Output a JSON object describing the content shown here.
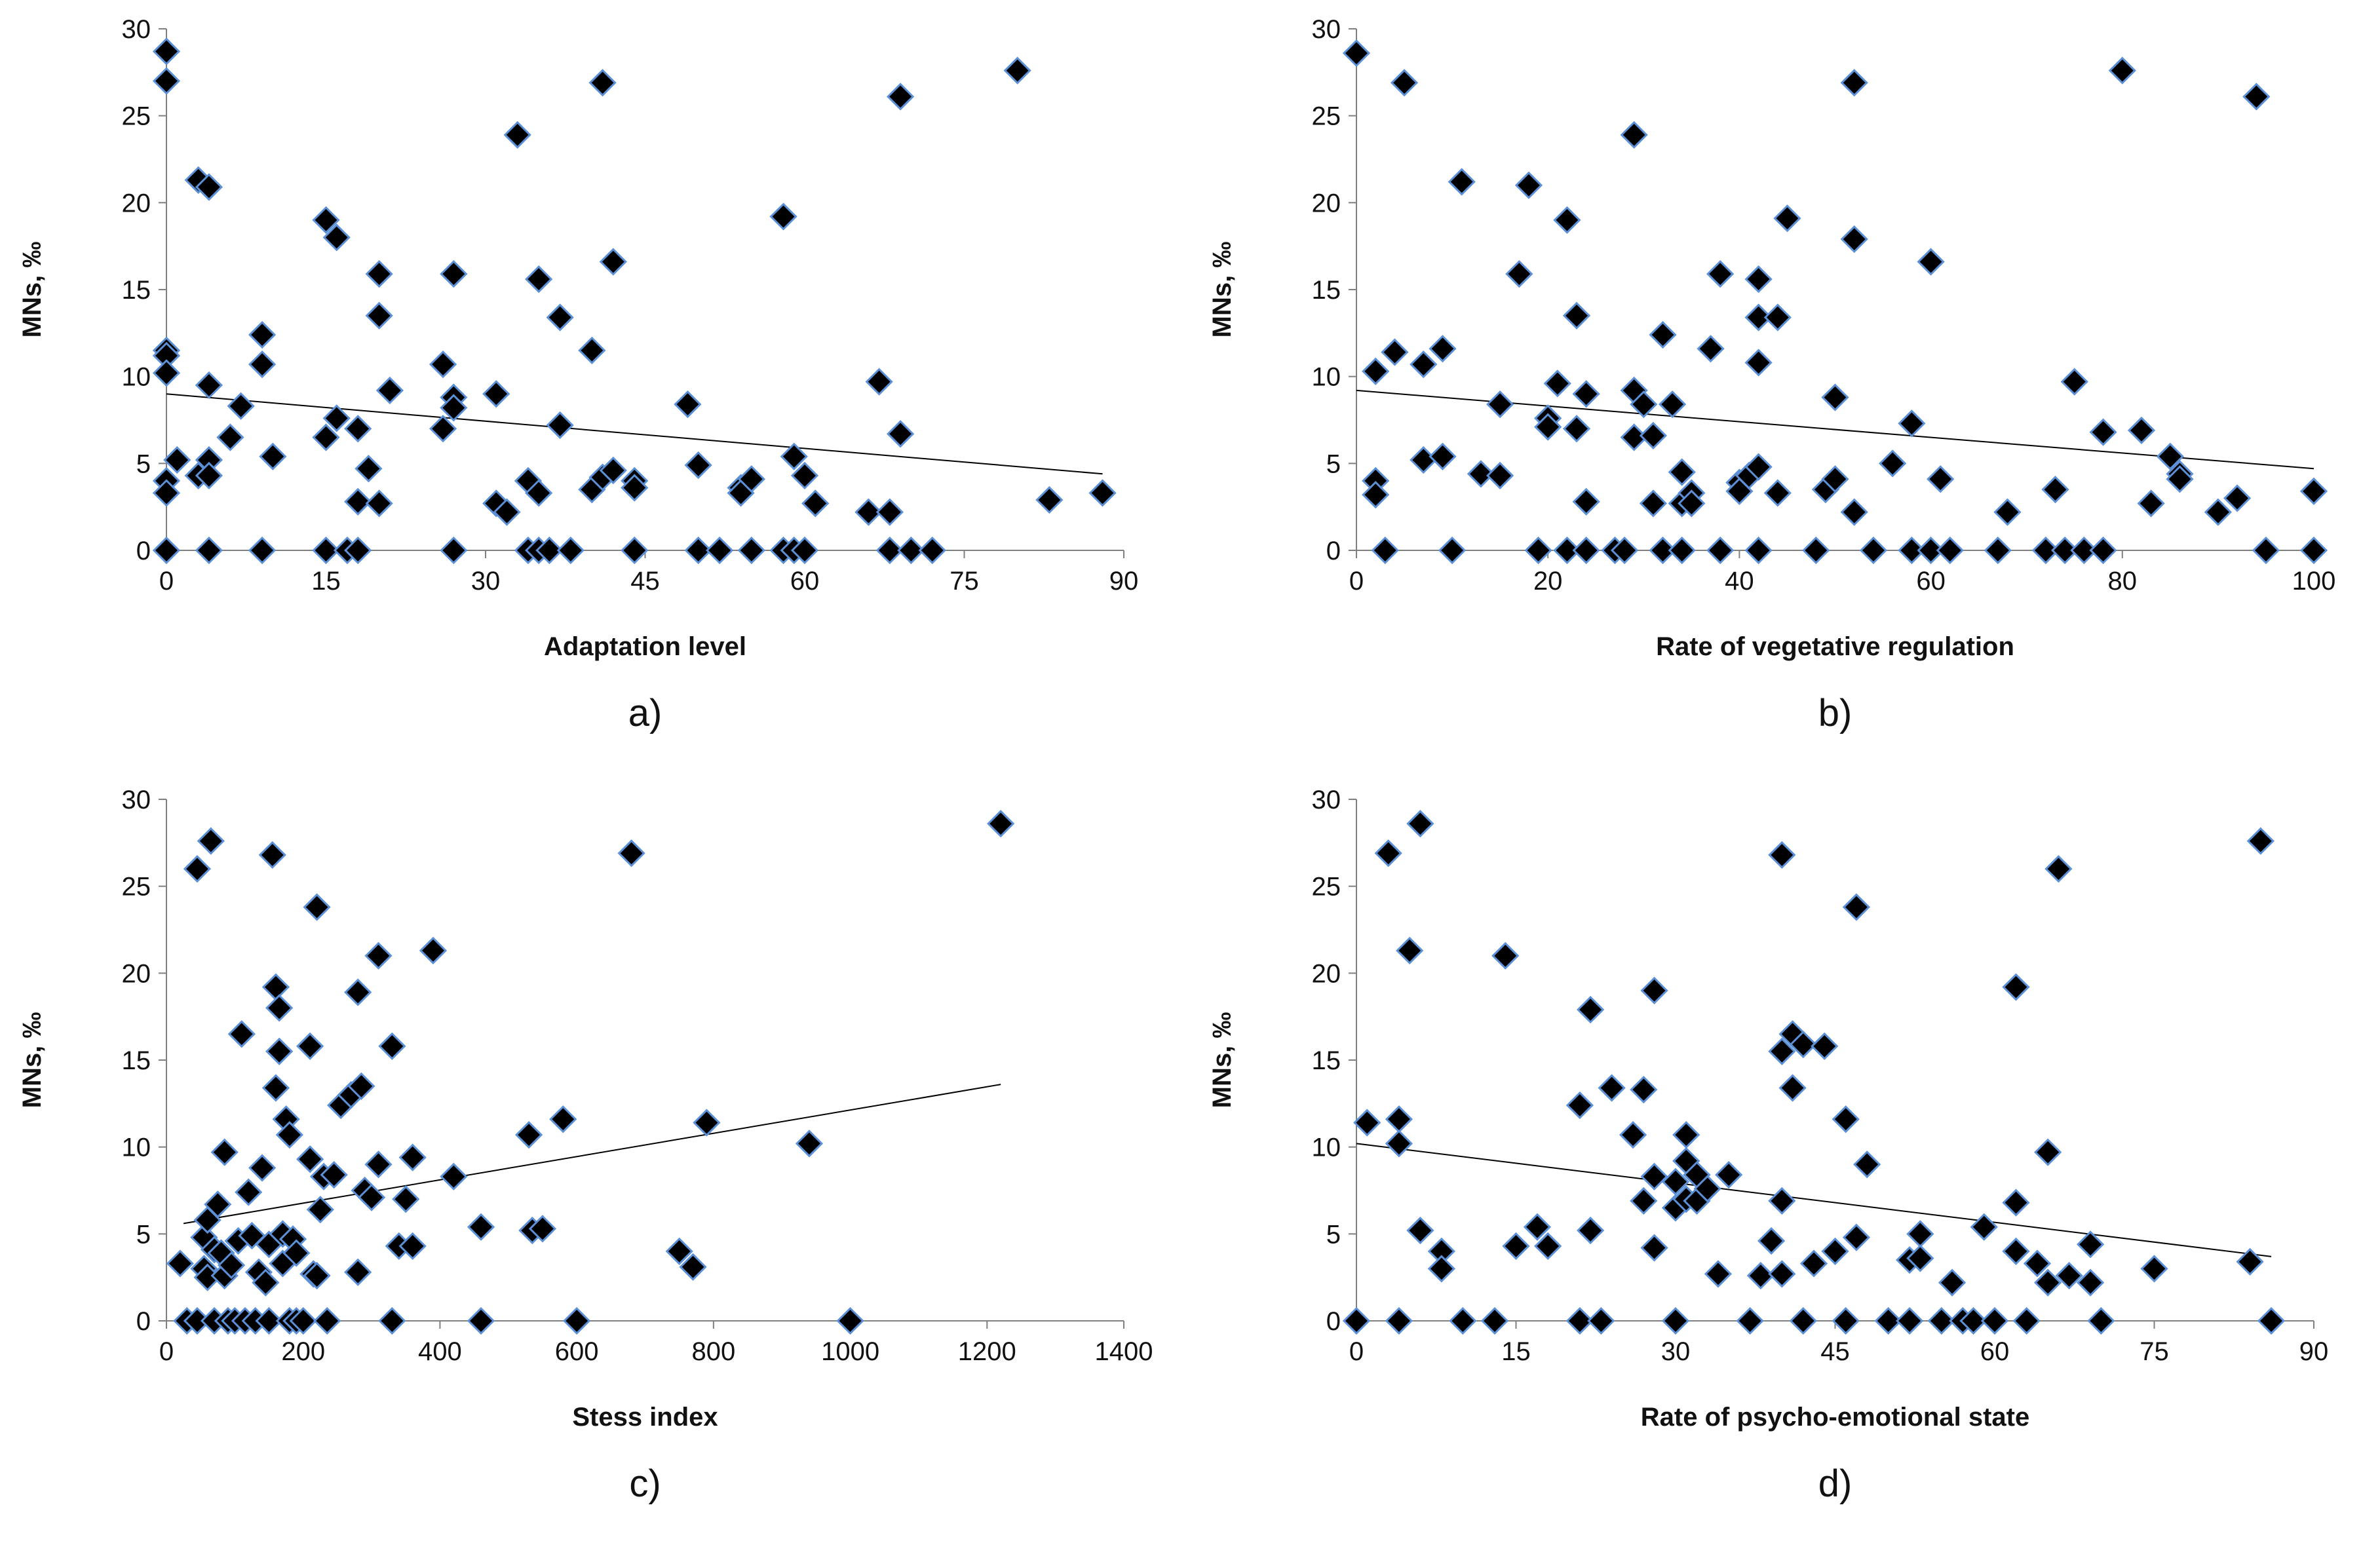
{
  "colors": {
    "marker_fill": "#000000",
    "marker_stroke": "#5b8fd6",
    "axis": "#808080",
    "trend": "#000000"
  },
  "chart_data": [
    {
      "id": "a",
      "type": "scatter",
      "caption": "a)",
      "xlabel": "Adaptation level",
      "ylabel": "MNs, ‰",
      "xlim": [
        0,
        90
      ],
      "ylim": [
        0,
        30
      ],
      "xticks": [
        0,
        15,
        30,
        45,
        60,
        75,
        90
      ],
      "yticks": [
        0,
        5,
        10,
        15,
        20,
        25,
        30
      ],
      "trendline": {
        "x": [
          0,
          88
        ],
        "y": [
          9.0,
          4.4
        ]
      },
      "points": [
        [
          0,
          28.7
        ],
        [
          0,
          27.0
        ],
        [
          0,
          11.5
        ],
        [
          0,
          11.2
        ],
        [
          0,
          10.2
        ],
        [
          0,
          4.0
        ],
        [
          0,
          3.3
        ],
        [
          0,
          0
        ],
        [
          1,
          5.2
        ],
        [
          3,
          21.3
        ],
        [
          3,
          4.3
        ],
        [
          4,
          20.9
        ],
        [
          4,
          9.5
        ],
        [
          4,
          5.2
        ],
        [
          4,
          4.3
        ],
        [
          4,
          0
        ],
        [
          6,
          6.5
        ],
        [
          7,
          8.3
        ],
        [
          9,
          12.4
        ],
        [
          9,
          10.7
        ],
        [
          9,
          0
        ],
        [
          10,
          5.4
        ],
        [
          15,
          19.0
        ],
        [
          15,
          6.5
        ],
        [
          15,
          0
        ],
        [
          16,
          18.0
        ],
        [
          16,
          7.6
        ],
        [
          17,
          0
        ],
        [
          18,
          7.0
        ],
        [
          18,
          2.8
        ],
        [
          18,
          0
        ],
        [
          19,
          4.7
        ],
        [
          20,
          15.9
        ],
        [
          20,
          13.5
        ],
        [
          20,
          2.7
        ],
        [
          21,
          9.2
        ],
        [
          26,
          10.7
        ],
        [
          26,
          7.0
        ],
        [
          27,
          15.9
        ],
        [
          27,
          8.8
        ],
        [
          27,
          8.2
        ],
        [
          27,
          0
        ],
        [
          31,
          9.0
        ],
        [
          31,
          2.7
        ],
        [
          32,
          2.2
        ],
        [
          33,
          23.9
        ],
        [
          34,
          4.0
        ],
        [
          34,
          0
        ],
        [
          35,
          15.6
        ],
        [
          35,
          3.3
        ],
        [
          35,
          0
        ],
        [
          36,
          0
        ],
        [
          37,
          13.4
        ],
        [
          37,
          7.2
        ],
        [
          38,
          0
        ],
        [
          40,
          11.5
        ],
        [
          40,
          3.5
        ],
        [
          41,
          26.9
        ],
        [
          41,
          4.2
        ],
        [
          42,
          16.6
        ],
        [
          42,
          4.6
        ],
        [
          44,
          4.0
        ],
        [
          44,
          3.6
        ],
        [
          44,
          0
        ],
        [
          49,
          8.4
        ],
        [
          50,
          4.9
        ],
        [
          50,
          0
        ],
        [
          52,
          0
        ],
        [
          54,
          3.6
        ],
        [
          54,
          3.3
        ],
        [
          55,
          4.1
        ],
        [
          55,
          0
        ],
        [
          58,
          19.2
        ],
        [
          58,
          0
        ],
        [
          59,
          5.4
        ],
        [
          59,
          0
        ],
        [
          60,
          4.3
        ],
        [
          60,
          0
        ],
        [
          61,
          2.7
        ],
        [
          66,
          2.2
        ],
        [
          67,
          9.7
        ],
        [
          68,
          2.2
        ],
        [
          68,
          0
        ],
        [
          69,
          26.1
        ],
        [
          69,
          6.7
        ],
        [
          70,
          0
        ],
        [
          72,
          0
        ],
        [
          80,
          27.6
        ],
        [
          83,
          2.9
        ],
        [
          88,
          3.3
        ]
      ]
    },
    {
      "id": "b",
      "type": "scatter",
      "caption": "b)",
      "xlabel": "Rate of vegetative regulation",
      "ylabel": "MNs, ‰",
      "xlim": [
        0,
        100
      ],
      "ylim": [
        0,
        30
      ],
      "xticks": [
        0,
        20,
        40,
        60,
        80,
        100
      ],
      "yticks": [
        0,
        5,
        10,
        15,
        20,
        25,
        30
      ],
      "trendline": {
        "x": [
          0,
          100
        ],
        "y": [
          9.2,
          4.7
        ]
      },
      "points": [
        [
          0,
          28.6
        ],
        [
          2,
          10.3
        ],
        [
          2,
          4.0
        ],
        [
          2,
          3.2
        ],
        [
          3,
          0
        ],
        [
          4,
          11.4
        ],
        [
          5,
          26.9
        ],
        [
          7,
          10.7
        ],
        [
          7,
          5.2
        ],
        [
          9,
          11.6
        ],
        [
          9,
          5.4
        ],
        [
          10,
          0
        ],
        [
          11,
          21.2
        ],
        [
          13,
          4.4
        ],
        [
          15,
          8.4
        ],
        [
          15,
          4.3
        ],
        [
          17,
          15.9
        ],
        [
          18,
          21.0
        ],
        [
          19,
          0
        ],
        [
          20,
          7.6
        ],
        [
          20,
          7.1
        ],
        [
          21,
          9.6
        ],
        [
          22,
          19.0
        ],
        [
          22,
          0
        ],
        [
          23,
          13.5
        ],
        [
          23,
          7.0
        ],
        [
          24,
          9.0
        ],
        [
          24,
          2.8
        ],
        [
          24,
          0
        ],
        [
          27,
          0
        ],
        [
          28,
          0
        ],
        [
          29,
          23.9
        ],
        [
          29,
          9.2
        ],
        [
          29,
          6.5
        ],
        [
          30,
          8.4
        ],
        [
          31,
          6.6
        ],
        [
          31,
          2.7
        ],
        [
          32,
          12.4
        ],
        [
          32,
          0
        ],
        [
          33,
          8.4
        ],
        [
          34,
          4.5
        ],
        [
          34,
          2.7
        ],
        [
          34,
          0
        ],
        [
          35,
          3.3
        ],
        [
          35,
          2.7
        ],
        [
          37,
          11.6
        ],
        [
          38,
          15.9
        ],
        [
          38,
          0
        ],
        [
          40,
          3.9
        ],
        [
          40,
          3.4
        ],
        [
          41,
          4.3
        ],
        [
          42,
          15.6
        ],
        [
          42,
          13.4
        ],
        [
          42,
          10.8
        ],
        [
          42,
          4.8
        ],
        [
          42,
          0
        ],
        [
          44,
          13.4
        ],
        [
          44,
          3.3
        ],
        [
          45,
          19.1
        ],
        [
          48,
          0
        ],
        [
          49,
          3.5
        ],
        [
          50,
          8.8
        ],
        [
          50,
          4.1
        ],
        [
          52,
          26.9
        ],
        [
          52,
          17.9
        ],
        [
          52,
          2.2
        ],
        [
          54,
          0
        ],
        [
          56,
          5.0
        ],
        [
          58,
          7.3
        ],
        [
          58,
          0
        ],
        [
          60,
          0
        ],
        [
          60,
          16.6
        ],
        [
          61,
          4.1
        ],
        [
          62,
          0
        ],
        [
          67,
          0
        ],
        [
          68,
          2.2
        ],
        [
          72,
          0
        ],
        [
          73,
          3.5
        ],
        [
          74,
          0
        ],
        [
          75,
          9.7
        ],
        [
          76,
          0
        ],
        [
          78,
          6.8
        ],
        [
          78,
          0
        ],
        [
          80,
          27.6
        ],
        [
          82,
          6.9
        ],
        [
          83,
          2.7
        ],
        [
          85,
          5.4
        ],
        [
          86,
          4.4
        ],
        [
          86,
          4.1
        ],
        [
          90,
          2.2
        ],
        [
          92,
          3.0
        ],
        [
          94,
          26.1
        ],
        [
          95,
          0
        ],
        [
          100,
          3.4
        ],
        [
          100,
          0
        ]
      ]
    },
    {
      "id": "c",
      "type": "scatter",
      "caption": "c)",
      "xlabel": "Stess index",
      "ylabel": "MNs, ‰",
      "xlim": [
        0,
        1400
      ],
      "ylim": [
        0,
        30
      ],
      "xticks": [
        0,
        200,
        400,
        600,
        800,
        1000,
        1200,
        1400
      ],
      "yticks": [
        0,
        5,
        10,
        15,
        20,
        25,
        30
      ],
      "trendline": {
        "x": [
          25,
          1220
        ],
        "y": [
          5.6,
          13.6
        ]
      },
      "points": [
        [
          20,
          3.3
        ],
        [
          30,
          0
        ],
        [
          45,
          0
        ],
        [
          45,
          26.0
        ],
        [
          55,
          4.8
        ],
        [
          55,
          3.0
        ],
        [
          60,
          5.8
        ],
        [
          60,
          2.5
        ],
        [
          65,
          27.6
        ],
        [
          70,
          0
        ],
        [
          70,
          4.1
        ],
        [
          75,
          6.7
        ],
        [
          80,
          3.9
        ],
        [
          85,
          9.7
        ],
        [
          85,
          2.6
        ],
        [
          90,
          0
        ],
        [
          95,
          3.2
        ],
        [
          100,
          0
        ],
        [
          105,
          4.6
        ],
        [
          110,
          16.5
        ],
        [
          115,
          0
        ],
        [
          120,
          7.4
        ],
        [
          125,
          4.9
        ],
        [
          130,
          0
        ],
        [
          135,
          2.8
        ],
        [
          140,
          8.8
        ],
        [
          145,
          2.2
        ],
        [
          150,
          4.4
        ],
        [
          150,
          0
        ],
        [
          155,
          26.8
        ],
        [
          160,
          19.2
        ],
        [
          160,
          13.4
        ],
        [
          165,
          18.0
        ],
        [
          165,
          15.5
        ],
        [
          170,
          5.0
        ],
        [
          170,
          3.3
        ],
        [
          175,
          11.6
        ],
        [
          180,
          10.7
        ],
        [
          180,
          0
        ],
        [
          185,
          4.7
        ],
        [
          190,
          3.9
        ],
        [
          190,
          0
        ],
        [
          200,
          0
        ],
        [
          210,
          15.8
        ],
        [
          210,
          9.3
        ],
        [
          215,
          2.7
        ],
        [
          220,
          23.8
        ],
        [
          220,
          2.6
        ],
        [
          225,
          6.4
        ],
        [
          230,
          8.3
        ],
        [
          235,
          0
        ],
        [
          245,
          8.4
        ],
        [
          255,
          12.4
        ],
        [
          270,
          13.0
        ],
        [
          280,
          18.9
        ],
        [
          280,
          2.8
        ],
        [
          285,
          13.5
        ],
        [
          290,
          7.5
        ],
        [
          300,
          7.1
        ],
        [
          310,
          9.0
        ],
        [
          310,
          21.0
        ],
        [
          330,
          15.8
        ],
        [
          330,
          0
        ],
        [
          340,
          4.3
        ],
        [
          350,
          7.0
        ],
        [
          360,
          9.4
        ],
        [
          360,
          4.3
        ],
        [
          390,
          21.3
        ],
        [
          420,
          8.3
        ],
        [
          460,
          5.4
        ],
        [
          460,
          0
        ],
        [
          530,
          10.7
        ],
        [
          535,
          5.2
        ],
        [
          550,
          5.3
        ],
        [
          580,
          11.6
        ],
        [
          600,
          0
        ],
        [
          680,
          26.9
        ],
        [
          750,
          4.0
        ],
        [
          770,
          3.1
        ],
        [
          790,
          11.4
        ],
        [
          940,
          10.2
        ],
        [
          1000,
          0
        ],
        [
          1220,
          28.6
        ]
      ]
    },
    {
      "id": "d",
      "type": "scatter",
      "caption": "d)",
      "xlabel": "Rate of psycho-emotional state",
      "ylabel": "MNs, ‰",
      "xlim": [
        0,
        90
      ],
      "ylim": [
        0,
        30
      ],
      "xticks": [
        0,
        15,
        30,
        45,
        60,
        75,
        90
      ],
      "yticks": [
        0,
        5,
        10,
        15,
        20,
        25,
        30
      ],
      "trendline": {
        "x": [
          0,
          86
        ],
        "y": [
          10.2,
          3.7
        ]
      },
      "points": [
        [
          0,
          0
        ],
        [
          1,
          11.4
        ],
        [
          3,
          26.9
        ],
        [
          4,
          11.6
        ],
        [
          4,
          10.2
        ],
        [
          4,
          0
        ],
        [
          5,
          21.3
        ],
        [
          6,
          28.6
        ],
        [
          6,
          5.2
        ],
        [
          8,
          4.0
        ],
        [
          8,
          3.0
        ],
        [
          10,
          0
        ],
        [
          13,
          0
        ],
        [
          14,
          21.0
        ],
        [
          15,
          4.3
        ],
        [
          17,
          5.4
        ],
        [
          18,
          4.3
        ],
        [
          21,
          12.4
        ],
        [
          21,
          0
        ],
        [
          22,
          17.9
        ],
        [
          22,
          5.2
        ],
        [
          23,
          0
        ],
        [
          24,
          13.4
        ],
        [
          26,
          10.7
        ],
        [
          27,
          13.3
        ],
        [
          27,
          6.9
        ],
        [
          28,
          19.0
        ],
        [
          28,
          8.3
        ],
        [
          28,
          4.2
        ],
        [
          30,
          8.0
        ],
        [
          30,
          6.5
        ],
        [
          30,
          0
        ],
        [
          31,
          10.7
        ],
        [
          31,
          9.2
        ],
        [
          31,
          7.0
        ],
        [
          32,
          8.4
        ],
        [
          32,
          6.9
        ],
        [
          33,
          7.6
        ],
        [
          34,
          2.7
        ],
        [
          35,
          8.4
        ],
        [
          37,
          0
        ],
        [
          38,
          2.6
        ],
        [
          39,
          4.6
        ],
        [
          40,
          26.8
        ],
        [
          40,
          15.5
        ],
        [
          40,
          6.9
        ],
        [
          40,
          2.7
        ],
        [
          41,
          16.5
        ],
        [
          41,
          13.4
        ],
        [
          42,
          15.9
        ],
        [
          42,
          0
        ],
        [
          43,
          3.3
        ],
        [
          44,
          15.8
        ],
        [
          45,
          4.0
        ],
        [
          46,
          11.6
        ],
        [
          46,
          0
        ],
        [
          47,
          23.8
        ],
        [
          47,
          4.8
        ],
        [
          48,
          9.0
        ],
        [
          50,
          0
        ],
        [
          52,
          3.5
        ],
        [
          52,
          0
        ],
        [
          53,
          5.0
        ],
        [
          53,
          3.6
        ],
        [
          55,
          0
        ],
        [
          56,
          2.2
        ],
        [
          57,
          0
        ],
        [
          58,
          0
        ],
        [
          59,
          5.4
        ],
        [
          60,
          0
        ],
        [
          62,
          19.2
        ],
        [
          62,
          6.8
        ],
        [
          62,
          4.0
        ],
        [
          63,
          0
        ],
        [
          64,
          3.3
        ],
        [
          65,
          9.7
        ],
        [
          65,
          2.2
        ],
        [
          66,
          26.0
        ],
        [
          67,
          2.6
        ],
        [
          69,
          4.4
        ],
        [
          69,
          2.2
        ],
        [
          70,
          0
        ],
        [
          75,
          3.0
        ],
        [
          84,
          3.4
        ],
        [
          85,
          27.6
        ],
        [
          86,
          0
        ]
      ]
    }
  ]
}
